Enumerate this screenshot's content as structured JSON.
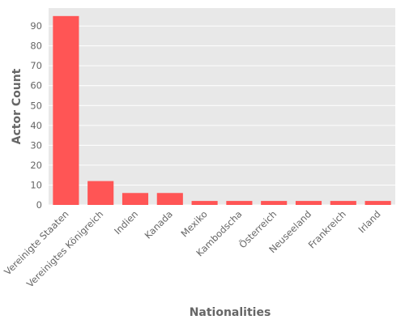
{
  "chart_data": {
    "type": "bar",
    "title": "",
    "xlabel": "Nationalities",
    "ylabel": "Actor Count",
    "categories": [
      "Vereinigte Staaten",
      "Vereinigtes Königreich",
      "Indien",
      "Kanada",
      "Mexiko",
      "Kambodscha",
      "Österreich",
      "Neuseeland",
      "Frankreich",
      "Irland"
    ],
    "values": [
      95,
      12,
      6,
      6,
      2,
      2,
      2,
      2,
      2,
      2
    ],
    "ylim": [
      0,
      99
    ],
    "yticks": [
      0,
      10,
      20,
      30,
      40,
      50,
      60,
      70,
      80,
      90
    ],
    "grid": true,
    "legend": "none",
    "colors": {
      "bar": "#ff5555",
      "plot_background": "#e8e8e8",
      "grid": "#ffffff",
      "text": "#666666"
    }
  }
}
